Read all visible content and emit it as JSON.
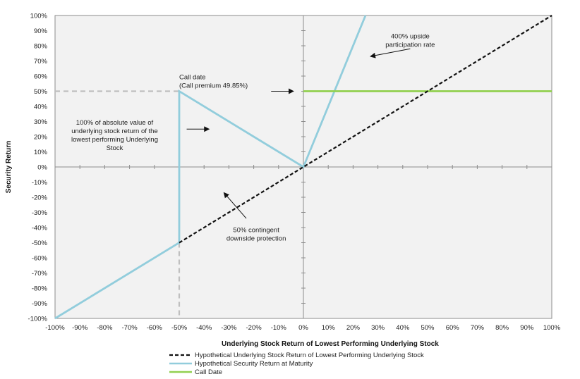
{
  "chart_data": {
    "type": "line",
    "xlabel": "Underlying Stock Return of Lowest Performing Underlying Stock",
    "ylabel": "Security Return",
    "xlim": [
      -100,
      100
    ],
    "ylim": [
      -100,
      100
    ],
    "x_ticks": [
      -100,
      -90,
      -80,
      -70,
      -60,
      -50,
      -40,
      -30,
      -20,
      -10,
      0,
      10,
      20,
      30,
      40,
      50,
      60,
      70,
      80,
      90,
      100
    ],
    "y_ticks": [
      -100,
      -90,
      -80,
      -70,
      -60,
      -50,
      -40,
      -30,
      -20,
      -10,
      0,
      10,
      20,
      30,
      40,
      50,
      60,
      70,
      80,
      90,
      100
    ],
    "x_tick_labels": [
      "-100%",
      "-90%",
      "-80%",
      "-70%",
      "-60%",
      "-50%",
      "-40%",
      "-30%",
      "-20%",
      "-10%",
      "0%",
      "10%",
      "20%",
      "30%",
      "40%",
      "50%",
      "60%",
      "70%",
      "80%",
      "90%",
      "100%"
    ],
    "y_tick_labels": [
      "-100%",
      "-90%",
      "-80%",
      "-70%",
      "-60%",
      "-50%",
      "-40%",
      "-30%",
      "-20%",
      "-10%",
      "0%",
      "10%",
      "20%",
      "30%",
      "40%",
      "50%",
      "60%",
      "70%",
      "80%",
      "90%",
      "100%"
    ],
    "series": [
      {
        "name": "Hypothetical Underlying Stock Return of Lowest Performing Underlying Stock",
        "color": "#111111",
        "style": "dashed",
        "points": [
          [
            -50,
            -50
          ],
          [
            100,
            100
          ]
        ]
      },
      {
        "name": "Hypothetical Security Return at Maturity",
        "color": "#92cddc",
        "style": "solid",
        "points": [
          [
            -100,
            -100
          ],
          [
            -50,
            -50
          ],
          [
            -50,
            50
          ],
          [
            0,
            0
          ],
          [
            25,
            100
          ]
        ]
      },
      {
        "name": "Call Date",
        "color": "#92d050",
        "style": "solid",
        "points": [
          [
            0,
            50
          ],
          [
            100,
            50
          ]
        ]
      }
    ],
    "reference_lines": {
      "color": "#bfbfbf",
      "style": "dashed",
      "segments": [
        [
          [
            -100,
            50
          ],
          [
            -50,
            50
          ]
        ],
        [
          [
            -50,
            -50
          ],
          [
            -50,
            -100
          ]
        ]
      ]
    },
    "annotations": [
      {
        "name": "call-date",
        "lines": [
          "Call date",
          "(Call premium 49.85%)"
        ],
        "anchor": [
          -50,
          58
        ],
        "arrow_from": [
          -13,
          50
        ],
        "arrow_to": [
          -4,
          50
        ]
      },
      {
        "name": "absolute-value",
        "lines": [
          "100% of absolute value of",
          "underlying stock return of the",
          "lowest performing Underlying",
          "Stock"
        ],
        "anchor": [
          -76,
          28
        ],
        "arrow_from": [
          -47,
          25
        ],
        "arrow_to": [
          -38,
          25
        ]
      },
      {
        "name": "upside-participation",
        "lines": [
          "400% upside",
          "participation rate"
        ],
        "anchor": [
          43,
          85
        ],
        "arrow_from": [
          43,
          78
        ],
        "arrow_to": [
          27,
          73
        ]
      },
      {
        "name": "contingent-protection",
        "lines": [
          "50% contingent",
          "downside protection"
        ],
        "anchor": [
          -19,
          -43
        ],
        "arrow_from": [
          -23,
          -34
        ],
        "arrow_to": [
          -32,
          -17
        ]
      }
    ],
    "legend_position": "bottom",
    "grid": false,
    "plot_background": "#f2f2f2"
  }
}
